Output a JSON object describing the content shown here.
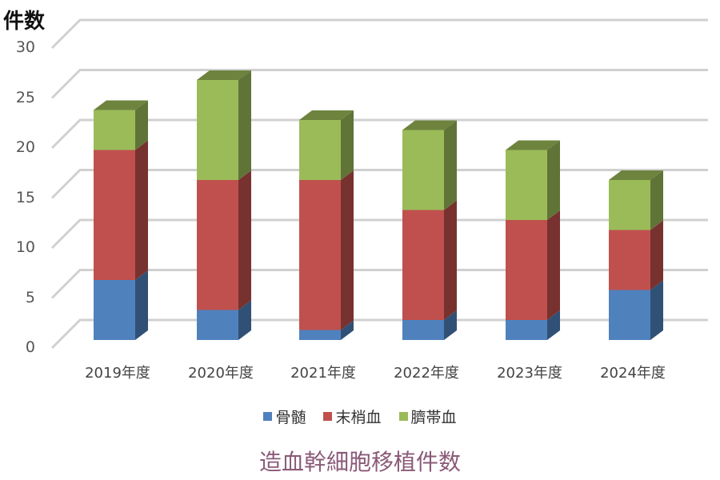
{
  "chart_data": {
    "type": "bar",
    "stacked": true,
    "style": "3d-column",
    "title": "造血幹細胞移植件数",
    "ylabel": "件数",
    "xlabel": "",
    "ylim": [
      0,
      30
    ],
    "yticks": [
      0,
      5,
      10,
      15,
      20,
      25,
      30
    ],
    "grid": true,
    "legend_position": "bottom",
    "categories": [
      "2019年度",
      "2020年度",
      "2021年度",
      "2022年度",
      "2023年度",
      "2024年度"
    ],
    "series": [
      {
        "name": "骨髄",
        "color": "#4f81bd",
        "values": [
          6,
          3,
          1,
          2,
          2,
          5
        ]
      },
      {
        "name": "末梢血",
        "color": "#c0504d",
        "values": [
          13,
          13,
          15,
          11,
          10,
          6
        ]
      },
      {
        "name": "臍帯血",
        "color": "#9bbb59",
        "values": [
          4,
          10,
          6,
          8,
          7,
          5
        ]
      }
    ]
  },
  "labels": {
    "ylabel": "件数",
    "title": "造血幹細胞移植件数",
    "legend": [
      "骨髄",
      "末梢血",
      "臍帯血"
    ]
  }
}
